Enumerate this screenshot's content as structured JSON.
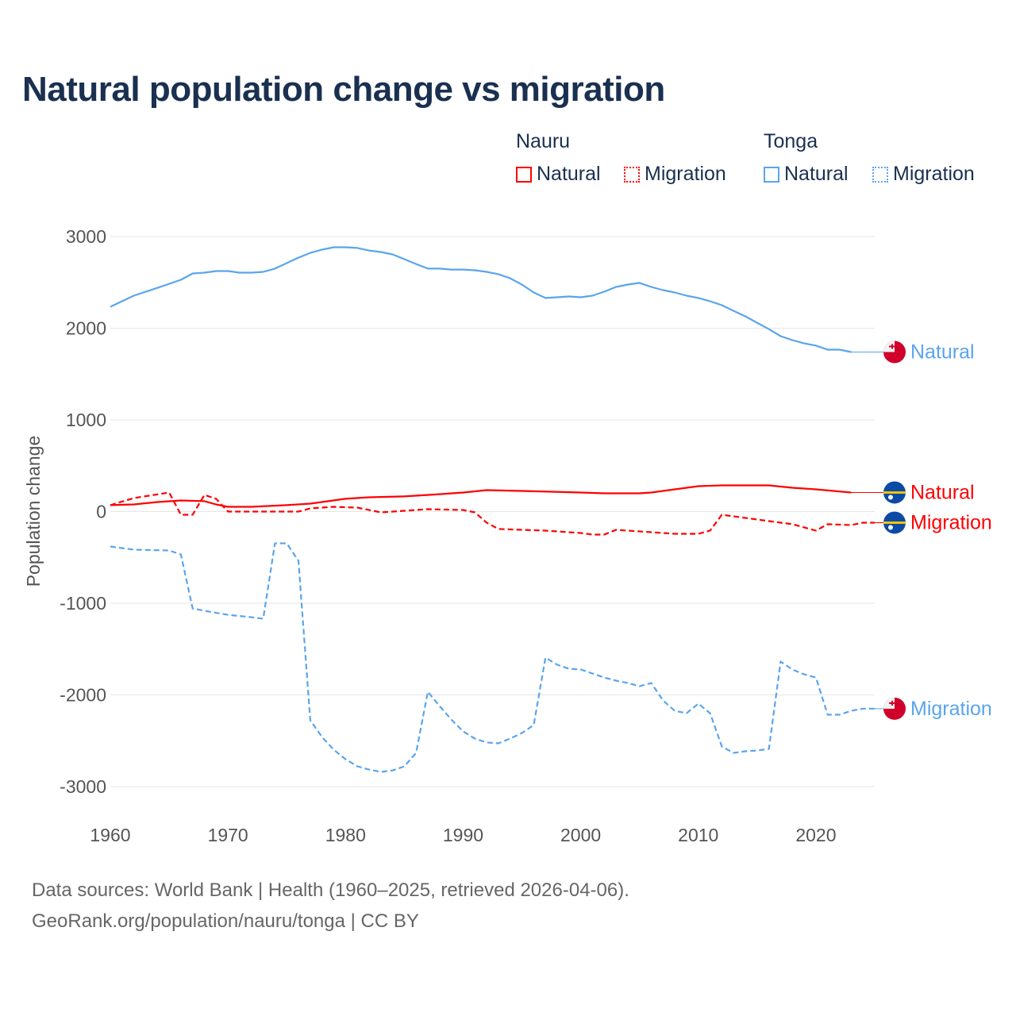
{
  "chart_data": {
    "type": "line",
    "title": "Natural population change vs migration",
    "xlabel": "",
    "ylabel": "Population change",
    "xlim": [
      1960,
      2025
    ],
    "ylim": [
      -3000,
      3000
    ],
    "x_ticks": [
      "1960",
      "1970",
      "1980",
      "1990",
      "2000",
      "2010",
      "2020"
    ],
    "y_ticks": [
      "3000",
      "2000",
      "1000",
      "0",
      "-1000",
      "-2000",
      "-3000"
    ],
    "grid": true,
    "legend": {
      "placement": "top-right",
      "groups": [
        {
          "country": "Nauru",
          "items": [
            "Natural",
            "Migration"
          ]
        },
        {
          "country": "Tonga",
          "items": [
            "Natural",
            "Migration"
          ]
        }
      ]
    },
    "colors": {
      "Nauru": "#ff0000",
      "Tonga": "#5aa5ec"
    },
    "series": [
      {
        "name": "Tonga Natural",
        "country": "Tonga",
        "label": "Natural",
        "style": "solid",
        "points": [
          [
            1960,
            2234
          ],
          [
            1962,
            2355
          ],
          [
            1964,
            2440
          ],
          [
            1966,
            2528
          ],
          [
            1967,
            2597
          ],
          [
            1968,
            2606
          ],
          [
            1969,
            2623
          ],
          [
            1970,
            2623
          ],
          [
            1971,
            2606
          ],
          [
            1972,
            2606
          ],
          [
            1973,
            2615
          ],
          [
            1974,
            2650
          ],
          [
            1975,
            2710
          ],
          [
            1976,
            2770
          ],
          [
            1977,
            2822
          ],
          [
            1978,
            2857
          ],
          [
            1979,
            2883
          ],
          [
            1980,
            2883
          ],
          [
            1981,
            2875
          ],
          [
            1982,
            2848
          ],
          [
            1983,
            2831
          ],
          [
            1984,
            2805
          ],
          [
            1985,
            2753
          ],
          [
            1986,
            2700
          ],
          [
            1987,
            2650
          ],
          [
            1988,
            2650
          ],
          [
            1989,
            2640
          ],
          [
            1990,
            2640
          ],
          [
            1991,
            2632
          ],
          [
            1992,
            2615
          ],
          [
            1993,
            2590
          ],
          [
            1994,
            2545
          ],
          [
            1995,
            2476
          ],
          [
            1996,
            2390
          ],
          [
            1997,
            2330
          ],
          [
            1998,
            2338
          ],
          [
            1999,
            2346
          ],
          [
            2000,
            2338
          ],
          [
            2001,
            2355
          ],
          [
            2002,
            2398
          ],
          [
            2003,
            2450
          ],
          [
            2004,
            2476
          ],
          [
            2005,
            2494
          ],
          [
            2006,
            2450
          ],
          [
            2007,
            2416
          ],
          [
            2008,
            2390
          ],
          [
            2009,
            2355
          ],
          [
            2010,
            2330
          ],
          [
            2011,
            2294
          ],
          [
            2012,
            2251
          ],
          [
            2013,
            2190
          ],
          [
            2014,
            2130
          ],
          [
            2015,
            2060
          ],
          [
            2016,
            1990
          ],
          [
            2017,
            1913
          ],
          [
            2018,
            1870
          ],
          [
            2019,
            1835
          ],
          [
            2020,
            1810
          ],
          [
            2021,
            1766
          ],
          [
            2022,
            1766
          ],
          [
            2023,
            1740
          ]
        ]
      },
      {
        "name": "Tonga Migration",
        "country": "Tonga",
        "label": "Migration",
        "style": "dashed",
        "points": [
          [
            1960,
            -381
          ],
          [
            1962,
            -416
          ],
          [
            1965,
            -424
          ],
          [
            1966,
            -468
          ],
          [
            1967,
            -1056
          ],
          [
            1968,
            -1082
          ],
          [
            1970,
            -1126
          ],
          [
            1972,
            -1152
          ],
          [
            1973,
            -1169
          ],
          [
            1974,
            -346
          ],
          [
            1975,
            -346
          ],
          [
            1976,
            -537
          ],
          [
            1977,
            -2277
          ],
          [
            1978,
            -2459
          ],
          [
            1979,
            -2597
          ],
          [
            1980,
            -2701
          ],
          [
            1981,
            -2779
          ],
          [
            1982,
            -2814
          ],
          [
            1983,
            -2840
          ],
          [
            1984,
            -2823
          ],
          [
            1985,
            -2779
          ],
          [
            1986,
            -2632
          ],
          [
            1987,
            -1965
          ],
          [
            1988,
            -2121
          ],
          [
            1989,
            -2268
          ],
          [
            1990,
            -2398
          ],
          [
            1991,
            -2476
          ],
          [
            1992,
            -2519
          ],
          [
            1993,
            -2528
          ],
          [
            1994,
            -2476
          ],
          [
            1995,
            -2416
          ],
          [
            1996,
            -2329
          ],
          [
            1997,
            -1593
          ],
          [
            1998,
            -1671
          ],
          [
            1999,
            -1714
          ],
          [
            2000,
            -1723
          ],
          [
            2001,
            -1766
          ],
          [
            2002,
            -1810
          ],
          [
            2003,
            -1844
          ],
          [
            2004,
            -1870
          ],
          [
            2005,
            -1905
          ],
          [
            2006,
            -1870
          ],
          [
            2007,
            -2061
          ],
          [
            2008,
            -2173
          ],
          [
            2009,
            -2199
          ],
          [
            2010,
            -2095
          ],
          [
            2011,
            -2199
          ],
          [
            2012,
            -2563
          ],
          [
            2013,
            -2632
          ],
          [
            2014,
            -2615
          ],
          [
            2015,
            -2606
          ],
          [
            2016,
            -2589
          ],
          [
            2017,
            -1636
          ],
          [
            2018,
            -1723
          ],
          [
            2019,
            -1775
          ],
          [
            2020,
            -1810
          ],
          [
            2021,
            -2216
          ],
          [
            2022,
            -2216
          ],
          [
            2023,
            -2173
          ],
          [
            2024,
            -2150
          ],
          [
            2025,
            -2150
          ]
        ]
      },
      {
        "name": "Nauru Natural",
        "country": "Nauru",
        "label": "Natural",
        "style": "solid",
        "points": [
          [
            1960,
            70
          ],
          [
            1962,
            78
          ],
          [
            1964,
            104
          ],
          [
            1966,
            121
          ],
          [
            1968,
            113
          ],
          [
            1969,
            78
          ],
          [
            1970,
            52
          ],
          [
            1972,
            52
          ],
          [
            1975,
            70
          ],
          [
            1977,
            87
          ],
          [
            1980,
            139
          ],
          [
            1982,
            156
          ],
          [
            1985,
            165
          ],
          [
            1988,
            190
          ],
          [
            1990,
            208
          ],
          [
            1992,
            234
          ],
          [
            1995,
            225
          ],
          [
            2000,
            208
          ],
          [
            2002,
            199
          ],
          [
            2005,
            199
          ],
          [
            2006,
            208
          ],
          [
            2008,
            242
          ],
          [
            2010,
            277
          ],
          [
            2012,
            286
          ],
          [
            2016,
            286
          ],
          [
            2018,
            260
          ],
          [
            2020,
            242
          ],
          [
            2023,
            208
          ]
        ]
      },
      {
        "name": "Nauru Migration",
        "country": "Nauru",
        "label": "Migration",
        "style": "dashed",
        "points": [
          [
            1960,
            70
          ],
          [
            1962,
            147
          ],
          [
            1965,
            208
          ],
          [
            1966,
            -35
          ],
          [
            1967,
            -35
          ],
          [
            1968,
            182
          ],
          [
            1969,
            139
          ],
          [
            1970,
            0
          ],
          [
            1976,
            0
          ],
          [
            1977,
            35
          ],
          [
            1979,
            52
          ],
          [
            1981,
            43
          ],
          [
            1983,
            -9
          ],
          [
            1985,
            9
          ],
          [
            1987,
            26
          ],
          [
            1990,
            17
          ],
          [
            1991,
            -9
          ],
          [
            1992,
            -121
          ],
          [
            1993,
            -190
          ],
          [
            1995,
            -199
          ],
          [
            1997,
            -208
          ],
          [
            2000,
            -234
          ],
          [
            2001,
            -251
          ],
          [
            2002,
            -251
          ],
          [
            2003,
            -199
          ],
          [
            2006,
            -225
          ],
          [
            2008,
            -242
          ],
          [
            2010,
            -242
          ],
          [
            2011,
            -208
          ],
          [
            2012,
            -35
          ],
          [
            2014,
            -69
          ],
          [
            2016,
            -104
          ],
          [
            2018,
            -138
          ],
          [
            2020,
            -208
          ],
          [
            2021,
            -138
          ],
          [
            2023,
            -147
          ],
          [
            2024,
            -121
          ],
          [
            2025,
            -121
          ]
        ]
      }
    ],
    "end_labels": [
      {
        "series": "Tonga Natural",
        "text": "Natural",
        "flag": "tonga-flag"
      },
      {
        "series": "Nauru Natural",
        "text": "Natural",
        "flag": "nauru-flag"
      },
      {
        "series": "Nauru Migration",
        "text": "Migration",
        "flag": "nauru-flag"
      },
      {
        "series": "Tonga Migration",
        "text": "Migration",
        "flag": "tonga-flag"
      }
    ]
  },
  "footer": {
    "line1": "Data sources: World Bank | Health (1960–2025, retrieved 2026-04-06).",
    "line2": "GeoRank.org/population/nauru/tonga | CC BY"
  }
}
